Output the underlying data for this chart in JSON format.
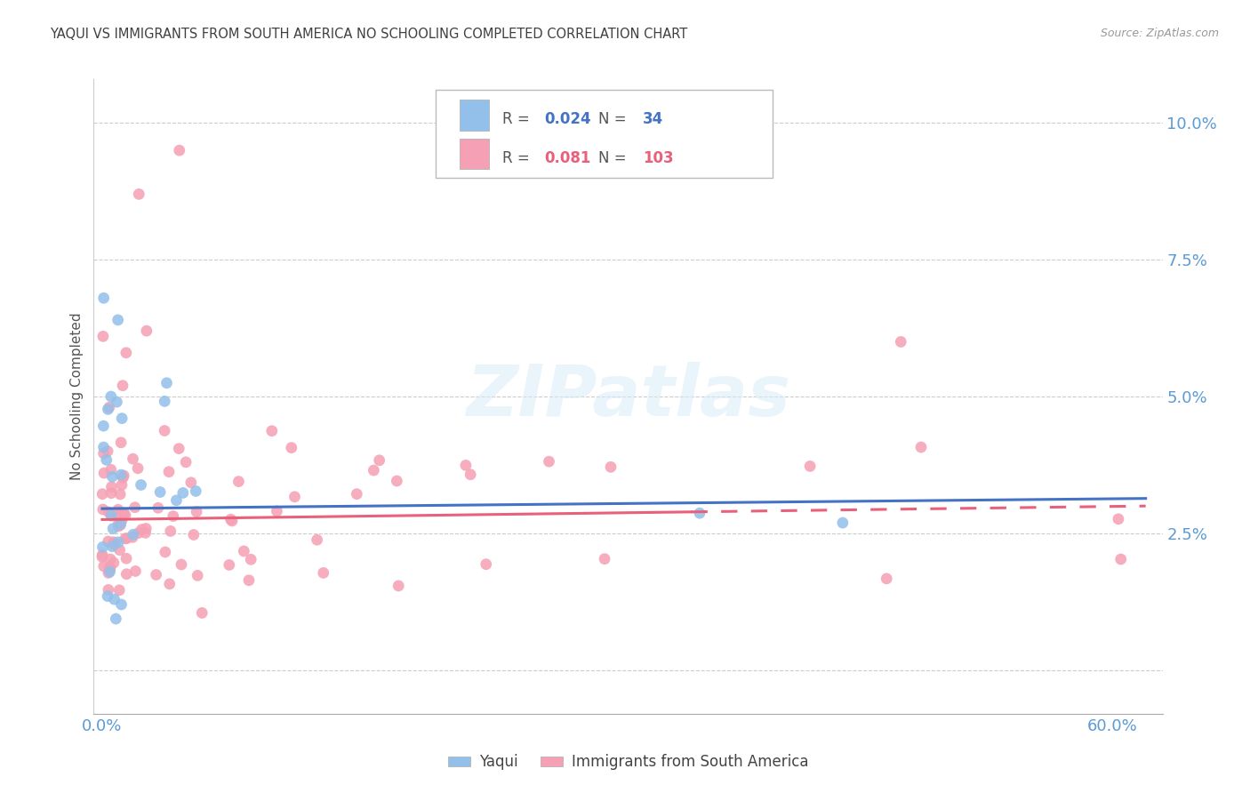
{
  "title": "YAQUI VS IMMIGRANTS FROM SOUTH AMERICA NO SCHOOLING COMPLETED CORRELATION CHART",
  "source": "Source: ZipAtlas.com",
  "ylabel": "No Schooling Completed",
  "xlim": [
    -0.005,
    0.63
  ],
  "ylim": [
    -0.008,
    0.108
  ],
  "ytick_vals": [
    0.0,
    0.025,
    0.05,
    0.075,
    0.1
  ],
  "ytick_labels": [
    "",
    "2.5%",
    "5.0%",
    "7.5%",
    "10.0%"
  ],
  "xtick_vals": [
    0.0,
    0.1,
    0.2,
    0.3,
    0.4,
    0.5,
    0.6
  ],
  "xtick_labels": [
    "0.0%",
    "",
    "",
    "",
    "",
    "",
    "60.0%"
  ],
  "yaqui_R": 0.024,
  "yaqui_N": 34,
  "immigrants_R": 0.081,
  "immigrants_N": 103,
  "yaqui_color": "#92C0EA",
  "immigrants_color": "#F5A0B4",
  "yaqui_line_color": "#4472C4",
  "immigrants_line_color": "#E8607A",
  "title_color": "#404040",
  "axis_tick_color": "#5B9BD5",
  "background_color": "#FFFFFF",
  "grid_color": "#CCCCCC",
  "yaqui_seed": 7,
  "immigrants_seed": 13
}
